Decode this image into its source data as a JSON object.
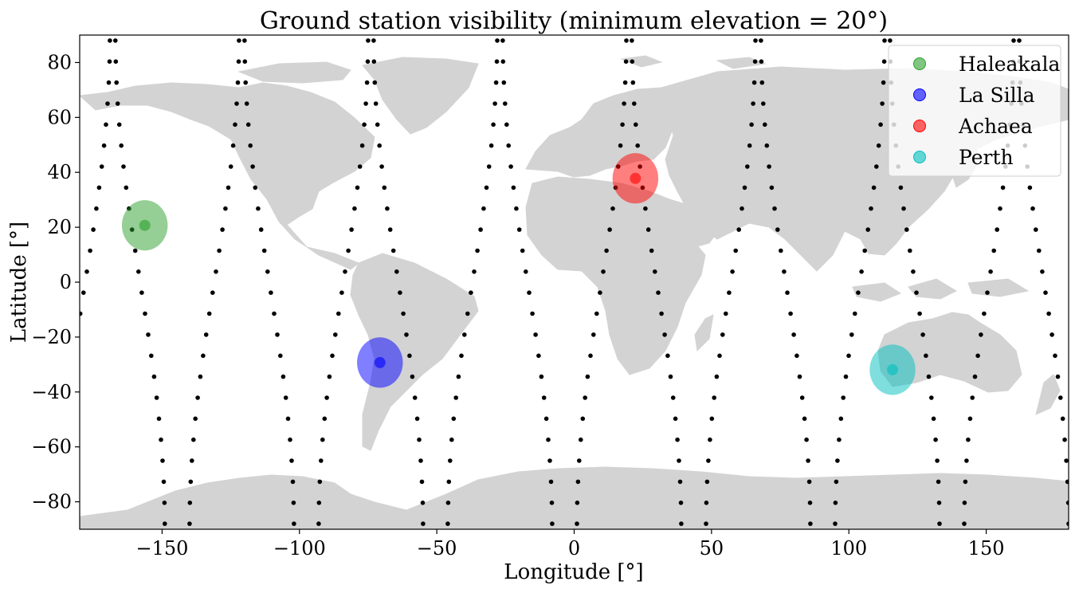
{
  "chart_data": {
    "type": "scatter",
    "title": "Ground station visibility (minimum elevation = 20°)",
    "xlabel": "Longitude [°]",
    "ylabel": "Latitude [°]",
    "xlim": [
      -180,
      180
    ],
    "ylim": [
      -90,
      90
    ],
    "xticks": [
      -150,
      -100,
      -50,
      0,
      50,
      100,
      150
    ],
    "xtick_labels": [
      "−150",
      "−100",
      "−50",
      "0",
      "50",
      "100",
      "150"
    ],
    "yticks": [
      80,
      60,
      40,
      20,
      0,
      -20,
      -40,
      -60,
      -80
    ],
    "ytick_labels": [
      "80",
      "60",
      "40",
      "20",
      "0",
      "−20",
      "−40",
      "−60",
      "−80"
    ],
    "grid": false,
    "background_map": "world land masses (light gray)",
    "ground_track": {
      "name": "satellite ground track",
      "color": "#000000",
      "passes": [
        {
          "lon_at_equator": -178,
          "direction": "ascending"
        },
        {
          "lon_at_equator": -158,
          "direction": "descending"
        },
        {
          "lon_at_equator": -131,
          "direction": "ascending"
        },
        {
          "lon_at_equator": -111,
          "direction": "descending"
        },
        {
          "lon_at_equator": -84,
          "direction": "ascending"
        },
        {
          "lon_at_equator": -64,
          "direction": "descending"
        },
        {
          "lon_at_equator": -37,
          "direction": "ascending"
        },
        {
          "lon_at_equator": -17,
          "direction": "descending"
        },
        {
          "lon_at_equator": 10,
          "direction": "ascending"
        },
        {
          "lon_at_equator": 30,
          "direction": "descending"
        },
        {
          "lon_at_equator": 57,
          "direction": "ascending"
        },
        {
          "lon_at_equator": 77,
          "direction": "descending"
        },
        {
          "lon_at_equator": 104,
          "direction": "ascending"
        },
        {
          "lon_at_equator": 124,
          "direction": "descending"
        },
        {
          "lon_at_equator": 151,
          "direction": "ascending"
        },
        {
          "lon_at_equator": 171,
          "direction": "descending"
        }
      ],
      "lon_shift_pole_to_pole": 9,
      "points_per_pass": 24
    },
    "stations": [
      {
        "name": "Haleakala",
        "lon": -156.3,
        "lat": 20.7,
        "color": "#2ca02c",
        "visibility_radius_deg": 8.5
      },
      {
        "name": "La Silla",
        "lon": -70.7,
        "lat": -29.3,
        "color": "#0000ff",
        "visibility_radius_deg": 8.5
      },
      {
        "name": "Achaea",
        "lon": 22.3,
        "lat": 37.8,
        "color": "#ff0000",
        "visibility_radius_deg": 8.5
      },
      {
        "name": "Perth",
        "lon": 115.9,
        "lat": -31.9,
        "color": "#00bfbf",
        "visibility_radius_deg": 8.5
      }
    ],
    "legend": {
      "location": "top-right",
      "entries": [
        "Haleakala",
        "La Silla",
        "Achaea",
        "Perth"
      ]
    }
  },
  "colors": {
    "land": "#d3d3d3",
    "ocean": "#ffffff",
    "track": "#000000",
    "axes": "#000000"
  }
}
